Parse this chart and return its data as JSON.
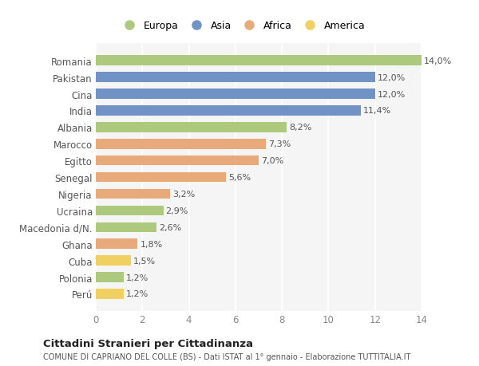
{
  "countries": [
    "Romania",
    "Pakistan",
    "Cina",
    "India",
    "Albania",
    "Marocco",
    "Egitto",
    "Senegal",
    "Nigeria",
    "Ucraina",
    "Macedonia d/N.",
    "Ghana",
    "Cuba",
    "Polonia",
    "Perú"
  ],
  "values": [
    14.0,
    12.0,
    12.0,
    11.4,
    8.2,
    7.3,
    7.0,
    5.6,
    3.2,
    2.9,
    2.6,
    1.8,
    1.5,
    1.2,
    1.2
  ],
  "labels": [
    "14,0%",
    "12,0%",
    "12,0%",
    "11,4%",
    "8,2%",
    "7,3%",
    "7,0%",
    "5,6%",
    "3,2%",
    "2,9%",
    "2,6%",
    "1,8%",
    "1,5%",
    "1,2%",
    "1,2%"
  ],
  "continents": [
    "Europa",
    "Asia",
    "Asia",
    "Asia",
    "Europa",
    "Africa",
    "Africa",
    "Africa",
    "Africa",
    "Europa",
    "Europa",
    "Africa",
    "America",
    "Europa",
    "America"
  ],
  "colors": {
    "Europa": "#adc97e",
    "Asia": "#7192c4",
    "Africa": "#e8aa7a",
    "America": "#f0d060"
  },
  "legend_order": [
    "Europa",
    "Asia",
    "Africa",
    "America"
  ],
  "title": "Cittadini Stranieri per Cittadinanza",
  "subtitle": "COMUNE DI CAPRIANO DEL COLLE (BS) - Dati ISTAT al 1° gennaio - Elaborazione TUTTITALIA.IT",
  "xlim": [
    0,
    14
  ],
  "xticks": [
    0,
    2,
    4,
    6,
    8,
    10,
    12,
    14
  ],
  "fig_bg_color": "#ffffff",
  "plot_bg_color": "#f5f5f5",
  "grid_color": "#ffffff",
  "bar_height": 0.6
}
